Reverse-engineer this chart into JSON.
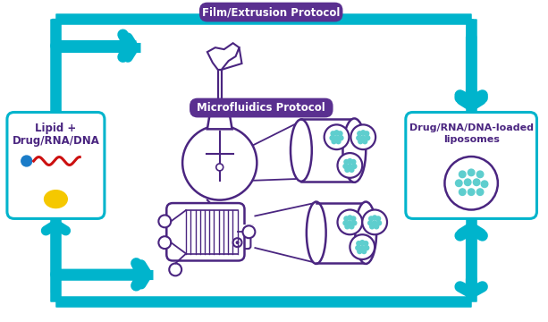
{
  "bg_color": "#ffffff",
  "teal": "#00b4cc",
  "purple_dark": "#4a2580",
  "purple_label_bg": "#5a3090",
  "yellow": "#f5c800",
  "red_wave": "#cc1010",
  "blue_dot": "#1a7cc8",
  "light_teal_dot": "#5ecece",
  "film_label": "Film/Extrusion Protocol",
  "micro_label": "Microfluidics Protocol",
  "left_line1": "Lipid +",
  "left_line2": "Drug/RNA/DNA",
  "right_line1": "Drug/RNA/DNA-loaded",
  "right_line2": "liposomes"
}
